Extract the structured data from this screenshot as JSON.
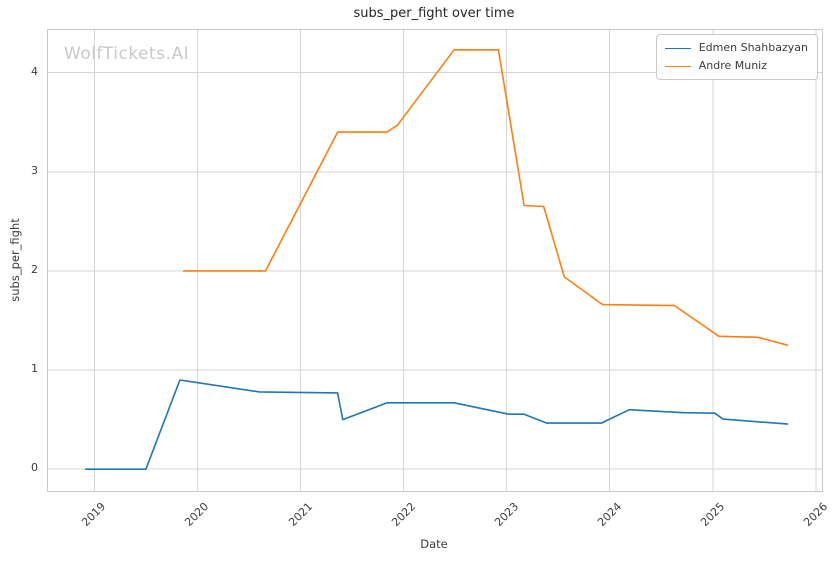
{
  "watermark": {
    "text": "WolfTickets.AI",
    "color": "#c9c9c9"
  },
  "colors": {
    "grid": "#d6d6d6",
    "spine": "#c9c9c9",
    "text": "#3c3c3c",
    "title": "#262626",
    "series_blue": "#1f77b4",
    "series_orange": "#ff7f0e"
  },
  "chart_data": {
    "type": "line",
    "title": "subs_per_fight over time",
    "xlabel": "Date",
    "ylabel": "subs_per_fight",
    "xlim": [
      2018.55,
      2026.06
    ],
    "ylim": [
      -0.22,
      4.43
    ],
    "x_ticks": [
      2019,
      2020,
      2021,
      2022,
      2023,
      2024,
      2025,
      2026
    ],
    "y_ticks": [
      0,
      1,
      2,
      3,
      4
    ],
    "grid": true,
    "legend_position": "upper right",
    "series": [
      {
        "name": "Edmen Shahbazyan",
        "color": "#1f77b4",
        "points": [
          [
            2018.91,
            0.0
          ],
          [
            2019.5,
            0.0
          ],
          [
            2019.83,
            0.9
          ],
          [
            2020.6,
            0.78
          ],
          [
            2021.36,
            0.77
          ],
          [
            2021.41,
            0.5
          ],
          [
            2021.84,
            0.67
          ],
          [
            2022.49,
            0.67
          ],
          [
            2023.02,
            0.555
          ],
          [
            2023.17,
            0.555
          ],
          [
            2023.39,
            0.465
          ],
          [
            2023.92,
            0.465
          ],
          [
            2024.19,
            0.6
          ],
          [
            2024.72,
            0.57
          ],
          [
            2025.02,
            0.565
          ],
          [
            2025.1,
            0.505
          ],
          [
            2025.73,
            0.455
          ]
        ]
      },
      {
        "name": "Andre Muniz",
        "color": "#ff7f0e",
        "points": [
          [
            2019.86,
            2.0
          ],
          [
            2020.66,
            2.0
          ],
          [
            2021.36,
            3.4
          ],
          [
            2021.84,
            3.4
          ],
          [
            2021.94,
            3.47
          ],
          [
            2022.49,
            4.23
          ],
          [
            2022.92,
            4.23
          ],
          [
            2023.17,
            2.66
          ],
          [
            2023.36,
            2.65
          ],
          [
            2023.56,
            1.94
          ],
          [
            2023.93,
            1.66
          ],
          [
            2024.63,
            1.65
          ],
          [
            2025.06,
            1.34
          ],
          [
            2025.44,
            1.33
          ],
          [
            2025.73,
            1.25
          ]
        ]
      }
    ]
  }
}
